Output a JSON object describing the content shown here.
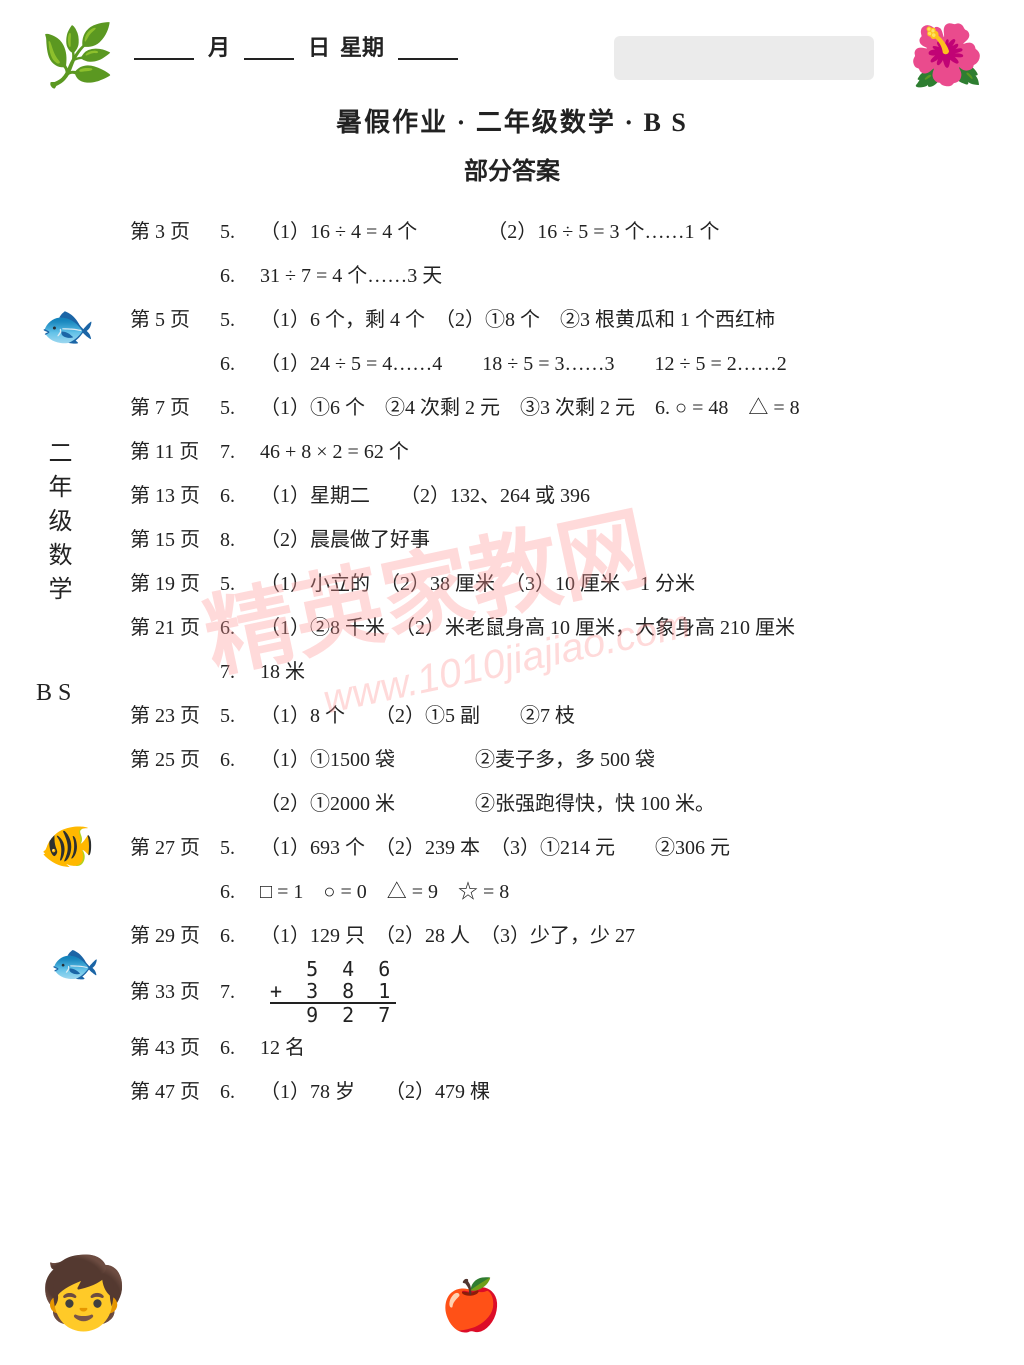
{
  "header": {
    "month_label": "月",
    "day_label": "日",
    "weekday_label": "星期"
  },
  "title": "暑假作业 · 二年级数学 · B S",
  "subtitle": "部分答案",
  "side_vertical": "二年级数学",
  "side_bs": "B S",
  "watermark_main": "精英家教网",
  "watermark_url": "www.1010jiajiao.com",
  "rows": {
    "p3_5": {
      "page": "第 3 页",
      "num": "5.",
      "text": "（1）16 ÷ 4 = 4 个　　　　（2）16 ÷ 5 = 3 个……1 个"
    },
    "p3_6": {
      "num": "6.",
      "text": "31 ÷ 7 = 4 个……3 天"
    },
    "p5_5": {
      "page": "第 5 页",
      "num": "5.",
      "text": "（1）6 个，剩 4 个　（2）①8 个　②3 根黄瓜和 1 个西红柿"
    },
    "p5_6": {
      "num": "6.",
      "text": "（1）24 ÷ 5 = 4……4　　18 ÷ 5 = 3……3　　12 ÷ 5 = 2……2"
    },
    "p7_5": {
      "page": "第 7 页",
      "num": "5.",
      "text": "（1）①6 个　②4 次剩 2 元　③3 次剩 2 元　6. ○ = 48　△ = 8"
    },
    "p11_7": {
      "page": "第 11 页",
      "num": "7.",
      "text": "46 + 8 × 2 = 62 个"
    },
    "p13_6": {
      "page": "第 13 页",
      "num": "6.",
      "text": "（1）星期二　　（2）132、264 或 396"
    },
    "p15_8": {
      "page": "第 15 页",
      "num": "8.",
      "text": "（2）晨晨做了好事"
    },
    "p19_5": {
      "page": "第 19 页",
      "num": "5.",
      "text": "（1）小立的　（2）38 厘米　（3）10 厘米　1 分米"
    },
    "p21_6": {
      "page": "第 21 页",
      "num": "6.",
      "text": "（1）②8 千米　（2）米老鼠身高 10 厘米，大象身高 210 厘米"
    },
    "p21_7": {
      "num": "7.",
      "text": "18 米"
    },
    "p23_5": {
      "page": "第 23 页",
      "num": "5.",
      "text": "（1）8 个　　（2）①5 副　　②7 枝"
    },
    "p25_6": {
      "page": "第 25 页",
      "num": "6.",
      "text": "（1）①1500 袋　　　　②麦子多，多 500 袋"
    },
    "p25_6b": {
      "text": "（2）①2000 米　　　　②张强跑得快，快 100 米。"
    },
    "p27_5": {
      "page": "第 27 页",
      "num": "5.",
      "text": "（1）693 个　（2）239 本　（3）①214 元　　②306 元"
    },
    "p27_6": {
      "num": "6.",
      "text": "□ = 1　○ = 0　△ = 9　☆ = 8"
    },
    "p29_6": {
      "page": "第 29 页",
      "num": "6.",
      "text": "（1）129 只　（2）28 人　（3）少了，少 27"
    },
    "p33_7": {
      "page": "第 33 页",
      "num": "7."
    },
    "p43_6": {
      "page": "第 43 页",
      "num": "6.",
      "text": "12 名"
    },
    "p47_6": {
      "page": "第 47 页",
      "num": "6.",
      "text": "（1）78 岁　　（2）479 棵"
    }
  },
  "addition": {
    "a": "5 4 6",
    "b": "+ 3 8 1",
    "c": "9 2 7"
  }
}
